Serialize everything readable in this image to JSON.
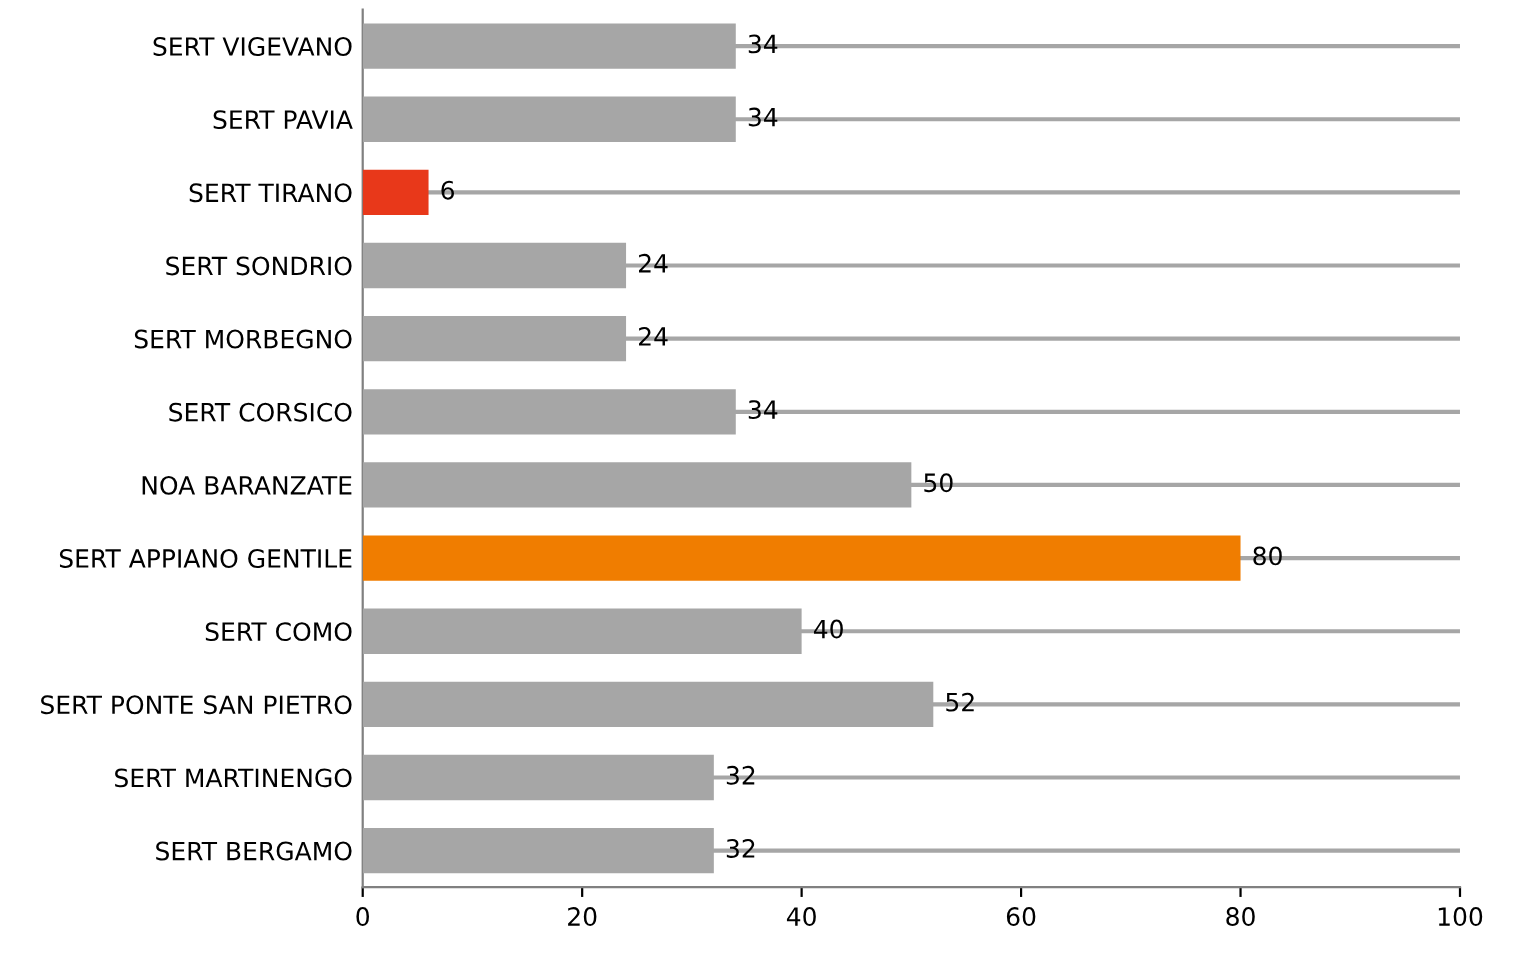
{
  "chart_data": {
    "type": "bar",
    "orientation": "horizontal",
    "categories": [
      "SERT VIGEVANO",
      "SERT PAVIA",
      "SERT TIRANO",
      "SERT SONDRIO",
      "SERT MORBEGNO",
      "SERT CORSICO",
      "NOA BARANZATE",
      "SERT APPIANO GENTILE",
      "SERT COMO",
      "SERT PONTE SAN PIETRO",
      "SERT MARTINENGO",
      "SERT BERGAMO"
    ],
    "values": [
      34,
      34,
      6,
      24,
      24,
      34,
      50,
      80,
      40,
      52,
      32,
      32
    ],
    "colors": [
      "#a6a6a6",
      "#a6a6a6",
      "#e8381a",
      "#a6a6a6",
      "#a6a6a6",
      "#a6a6a6",
      "#a6a6a6",
      "#f07d00",
      "#a6a6a6",
      "#a6a6a6",
      "#a6a6a6",
      "#a6a6a6"
    ],
    "xlim": [
      0,
      100
    ],
    "xticks": [
      0,
      20,
      40,
      60,
      80,
      100
    ],
    "grid": "y",
    "data_labels": true
  }
}
